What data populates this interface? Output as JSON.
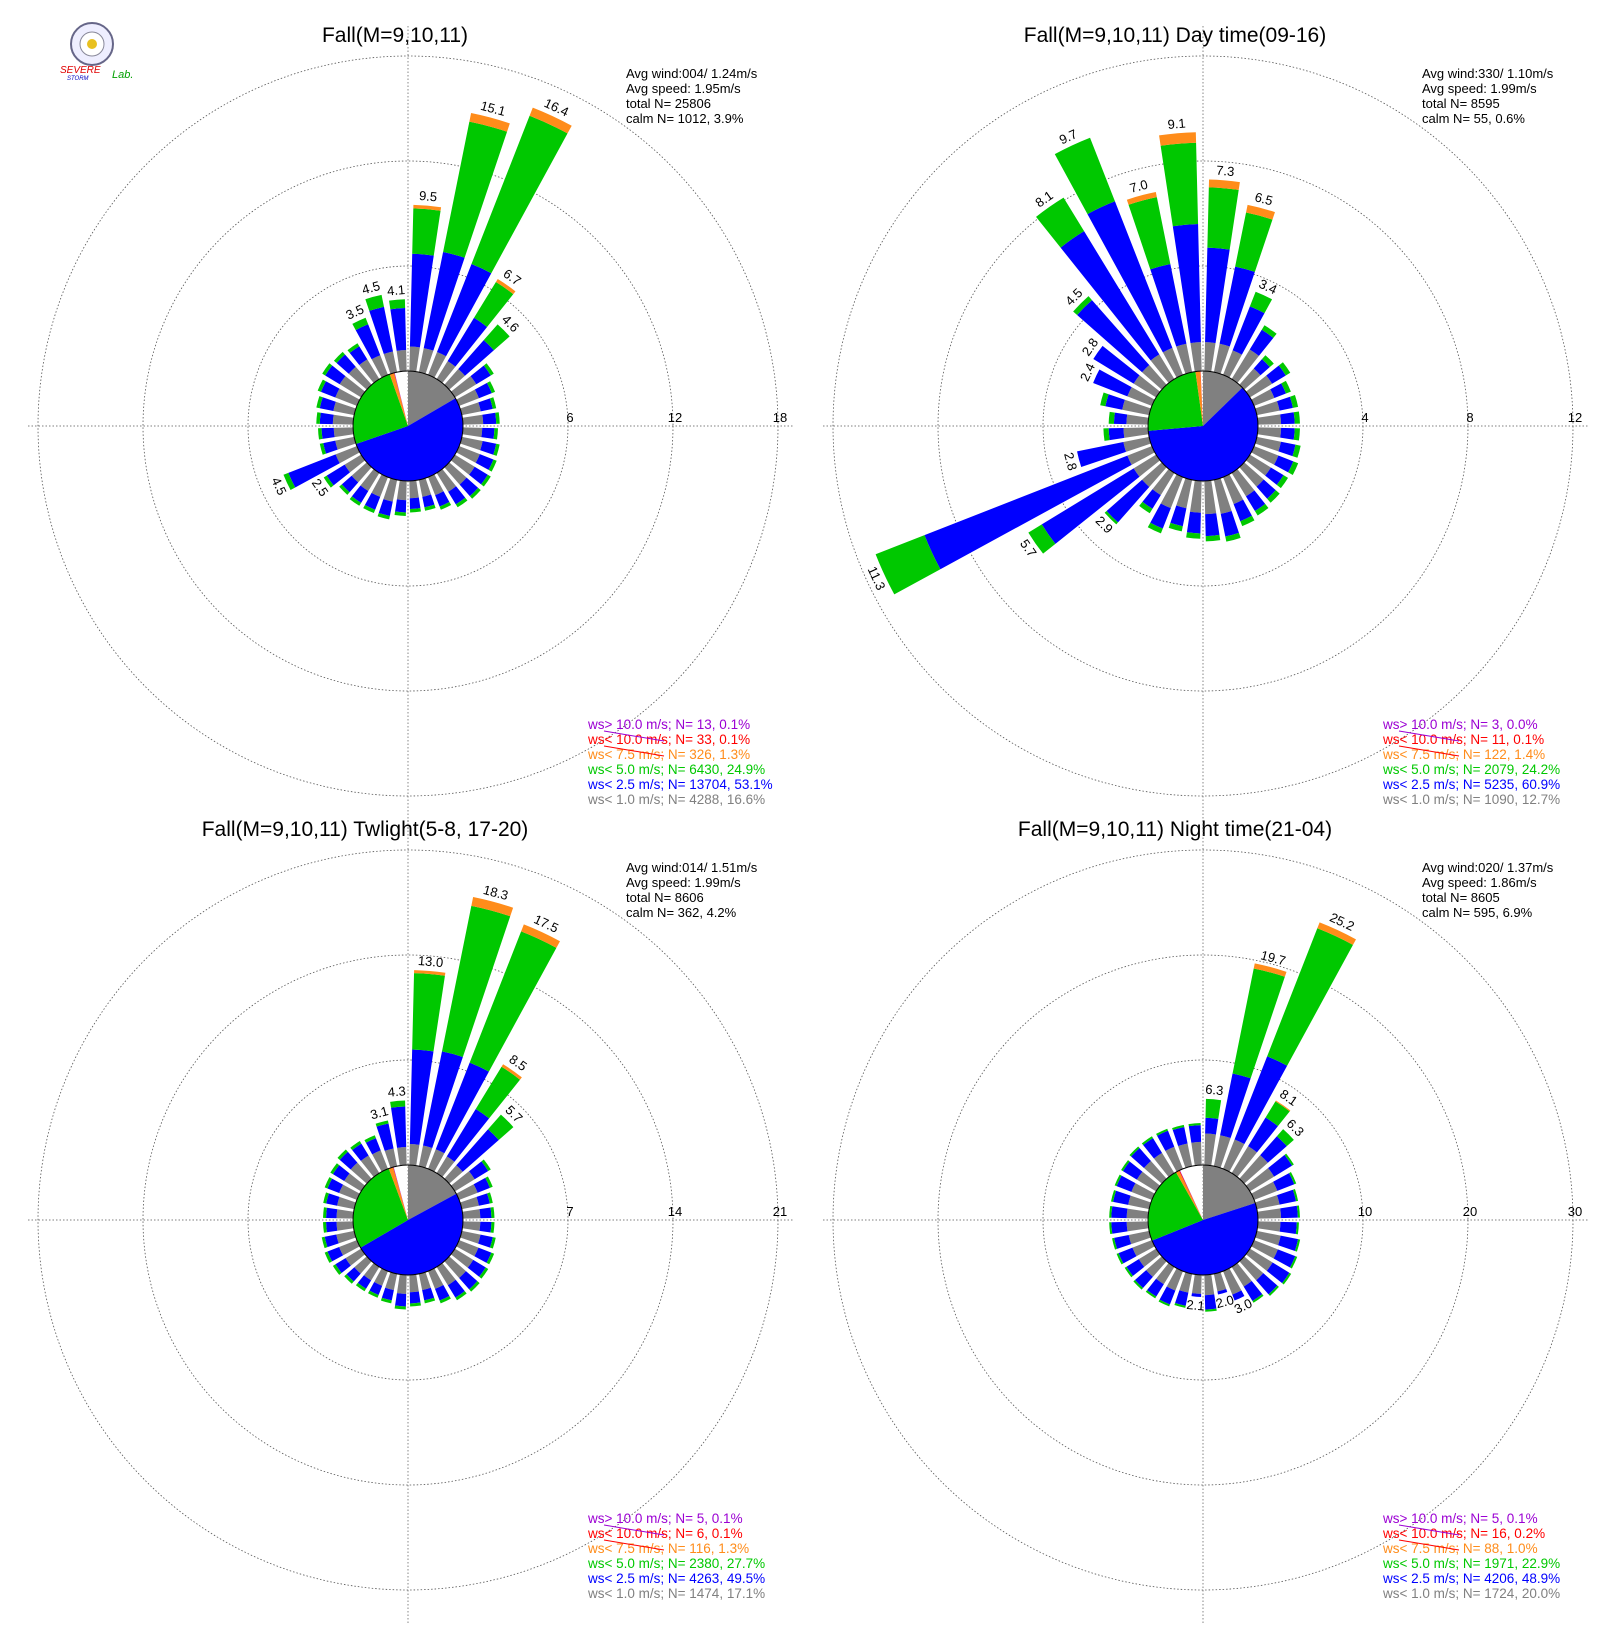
{
  "logo": {
    "lines": [
      "SEVERE",
      "STORM",
      "Lab."
    ]
  },
  "colors": {
    "gt10": "#9b00d3",
    "lt10": "#ff0000",
    "lt7_5": "#ff8c1a",
    "lt5": "#00c800",
    "lt2_5": "#0000ff",
    "lt1": "#808080"
  },
  "chart_data": [
    {
      "type": "polar-bar (wind rose)",
      "title": "Fall(M=9,10,11)",
      "ring_labels": [
        "6",
        "12",
        "18"
      ],
      "rmax": 18,
      "stats": [
        "Avg wind:004/ 1.24m/s",
        "Avg speed: 1.95m/s",
        "total N=       25806",
        "calm N=   1012,   3.9%"
      ],
      "legend": [
        "ws> 10.0 m/s; N=     13,  0.1%",
        "ws< 10.0 m/s; N=     33,  0.1%",
        "ws<  7.5 m/s; N=    326,  1.3%",
        "ws<  5.0 m/s; N=   6430, 24.9%",
        "ws<  2.5 m/s; N= 13704, 53.1%",
        "ws<  1.0 m/s; N=   4288, 16.6%"
      ],
      "labeled_bars": [
        {
          "dir": 5,
          "total": 9.5,
          "label": "9.5"
        },
        {
          "dir": 15,
          "total": 15.1,
          "label": "15.1"
        },
        {
          "dir": 25,
          "total": 16.4,
          "label": "16.4"
        },
        {
          "dir": 35,
          "total": 6.7,
          "label": "6.7"
        },
        {
          "dir": 45,
          "total": 4.6,
          "label": "4.6"
        },
        {
          "dir": 335,
          "total": 3.5,
          "label": "3.5"
        },
        {
          "dir": 345,
          "total": 4.5,
          "label": "4.5"
        },
        {
          "dir": 355,
          "total": 4.1,
          "label": "4.1"
        },
        {
          "dir": 245,
          "total": 4.5,
          "label": "4.5"
        },
        {
          "dir": 235,
          "total": 2.5,
          "label": "2.5"
        }
      ],
      "labeled_bar_segments": [
        [
          1.4,
          5.3,
          2.6,
          0.2,
          0
        ],
        [
          1.4,
          5.6,
          7.6,
          0.5,
          0
        ],
        [
          1.4,
          5.4,
          9.1,
          0.5,
          0
        ],
        [
          1.2,
          2.9,
          2.4,
          0.2,
          0
        ],
        [
          1.2,
          2.2,
          1.2,
          0,
          0
        ],
        [
          1.2,
          1.9,
          0.4,
          0,
          0
        ],
        [
          1.2,
          2.6,
          0.7,
          0,
          0
        ],
        [
          1.2,
          2.4,
          0.5,
          0,
          0
        ],
        [
          1.3,
          2.9,
          0.3,
          0,
          0
        ],
        [
          1.1,
          1.2,
          0.2,
          0,
          0
        ]
      ],
      "small_bars": [
        {
          "dir": 55,
          "total": 2.6
        },
        {
          "dir": 65,
          "total": 2.2
        },
        {
          "dir": 75,
          "total": 2.0
        },
        {
          "dir": 85,
          "total": 2.1
        },
        {
          "dir": 95,
          "total": 2.0
        },
        {
          "dir": 105,
          "total": 2.2
        },
        {
          "dir": 115,
          "total": 2.3
        },
        {
          "dir": 125,
          "total": 2.4
        },
        {
          "dir": 135,
          "total": 2.4
        },
        {
          "dir": 145,
          "total": 2.3
        },
        {
          "dir": 155,
          "total": 2.0
        },
        {
          "dir": 165,
          "total": 1.8
        },
        {
          "dir": 175,
          "total": 1.8
        },
        {
          "dir": 185,
          "total": 2.0
        },
        {
          "dir": 195,
          "total": 2.3
        },
        {
          "dir": 205,
          "total": 2.2
        },
        {
          "dir": 215,
          "total": 2.2
        },
        {
          "dir": 225,
          "total": 2.1
        },
        {
          "dir": 255,
          "total": 2.0
        },
        {
          "dir": 265,
          "total": 2.0
        },
        {
          "dir": 275,
          "total": 2.1
        },
        {
          "dir": 285,
          "total": 2.2
        },
        {
          "dir": 295,
          "total": 2.4
        },
        {
          "dir": 305,
          "total": 2.6
        },
        {
          "dir": 315,
          "total": 2.5
        },
        {
          "dir": 325,
          "total": 2.4
        }
      ],
      "pie_percent": [
        16.6,
        53.1,
        24.9,
        1.3,
        0.1,
        0.1
      ]
    },
    {
      "type": "polar-bar (wind rose)",
      "title": "Fall(M=9,10,11) Day time(09-16)",
      "ring_labels": [
        "4",
        "8",
        "12"
      ],
      "rmax": 12,
      "stats": [
        "Avg wind:330/ 1.10m/s",
        "Avg speed: 1.99m/s",
        "total N=         8595",
        "calm N=     55,   0.6%"
      ],
      "legend": [
        "ws> 10.0 m/s; N=       3,  0.0%",
        "ws< 10.0 m/s; N=     11,  0.1%",
        "ws<  7.5 m/s; N=    122,  1.4%",
        "ws<  5.0 m/s; N=   2079, 24.2%",
        "ws<  2.5 m/s; N=   5235, 60.9%",
        "ws<  1.0 m/s; N=   1090, 12.7%"
      ],
      "labeled_bars": [
        {
          "dir": 355,
          "total": 9.1,
          "label": "9.1"
        },
        {
          "dir": 345,
          "total": 7.0,
          "label": "7.0"
        },
        {
          "dir": 335,
          "total": 9.7,
          "label": "9.7"
        },
        {
          "dir": 325,
          "total": 8.1,
          "label": "8.1"
        },
        {
          "dir": 5,
          "total": 7.3,
          "label": "7.3"
        },
        {
          "dir": 15,
          "total": 6.5,
          "label": "6.5"
        },
        {
          "dir": 25,
          "total": 3.4,
          "label": "3.4"
        },
        {
          "dir": 315,
          "total": 4.5,
          "label": "4.5"
        },
        {
          "dir": 305,
          "total": 2.8,
          "label": "2.8"
        },
        {
          "dir": 295,
          "total": 2.4,
          "label": "2.4"
        },
        {
          "dir": 255,
          "total": 2.8,
          "label": "2.8"
        },
        {
          "dir": 245,
          "total": 11.3,
          "label": "11.3"
        },
        {
          "dir": 235,
          "total": 5.7,
          "label": "5.7"
        },
        {
          "dir": 225,
          "total": 2.9,
          "label": "2.9"
        }
      ],
      "labeled_bar_segments": [
        [
          1.1,
          4.5,
          3.1,
          0.4,
          0
        ],
        [
          1.1,
          3.1,
          2.6,
          0.2,
          0
        ],
        [
          1.1,
          6.0,
          2.6,
          0,
          0
        ],
        [
          1.1,
          5.5,
          1.5,
          0,
          0
        ],
        [
          1.1,
          3.6,
          2.3,
          0.3,
          0
        ],
        [
          1.1,
          3.0,
          2.1,
          0.3,
          0
        ],
        [
          1.0,
          1.8,
          0.6,
          0,
          0
        ],
        [
          1.0,
          3.3,
          0.2,
          0,
          0
        ],
        [
          1.0,
          1.8,
          0,
          0,
          0
        ],
        [
          1.0,
          1.4,
          0,
          0,
          0
        ],
        [
          1.0,
          1.8,
          0,
          0,
          0
        ],
        [
          1.0,
          8.3,
          2.0,
          0,
          0
        ],
        [
          1.0,
          4.1,
          0.6,
          0,
          0
        ],
        [
          1.0,
          1.8,
          0.1,
          0,
          0
        ]
      ],
      "small_bars": [
        {
          "dir": 35,
          "total": 2.4
        },
        {
          "dir": 45,
          "total": 1.5
        },
        {
          "dir": 55,
          "total": 1.8
        },
        {
          "dir": 65,
          "total": 1.5
        },
        {
          "dir": 75,
          "total": 1.6
        },
        {
          "dir": 85,
          "total": 1.6
        },
        {
          "dir": 95,
          "total": 1.6
        },
        {
          "dir": 105,
          "total": 1.7
        },
        {
          "dir": 115,
          "total": 1.8
        },
        {
          "dir": 125,
          "total": 1.7
        },
        {
          "dir": 135,
          "total": 1.8
        },
        {
          "dir": 145,
          "total": 1.9
        },
        {
          "dir": 155,
          "total": 2.0
        },
        {
          "dir": 165,
          "total": 2.4
        },
        {
          "dir": 175,
          "total": 2.3
        },
        {
          "dir": 185,
          "total": 2.2
        },
        {
          "dir": 195,
          "total": 2.0
        },
        {
          "dir": 205,
          "total": 2.3
        },
        {
          "dir": 215,
          "total": 1.8
        },
        {
          "dir": 265,
          "total": 1.7
        },
        {
          "dir": 275,
          "total": 1.5
        },
        {
          "dir": 285,
          "total": 1.9
        }
      ],
      "pie_percent": [
        12.7,
        60.9,
        24.2,
        1.4,
        0.1,
        0.0
      ]
    },
    {
      "type": "polar-bar (wind rose)",
      "title": "Fall(M=9,10,11) Twlight(5-8, 17-20)",
      "ring_labels": [
        "7",
        "14",
        "21"
      ],
      "rmax": 21,
      "stats": [
        "Avg wind:014/ 1.51m/s",
        "Avg speed: 1.99m/s",
        "total N=         8606",
        "calm N=    362,   4.2%"
      ],
      "legend": [
        "ws> 10.0 m/s; N=       5,  0.1%",
        "ws< 10.0 m/s; N=       6,  0.1%",
        "ws<  7.5 m/s; N=    116,  1.3%",
        "ws<  5.0 m/s; N=   2380, 27.7%",
        "ws<  2.5 m/s; N=   4263, 49.5%",
        "ws<  1.0 m/s; N=   1474, 17.1%"
      ],
      "labeled_bars": [
        {
          "dir": 5,
          "total": 13.0,
          "label": "13.0"
        },
        {
          "dir": 15,
          "total": 18.3,
          "label": "18.3"
        },
        {
          "dir": 25,
          "total": 17.5,
          "label": "17.5"
        },
        {
          "dir": 35,
          "total": 8.5,
          "label": "8.5"
        },
        {
          "dir": 45,
          "total": 5.7,
          "label": "5.7"
        },
        {
          "dir": 345,
          "total": 3.1,
          "label": "3.1"
        },
        {
          "dir": 355,
          "total": 4.3,
          "label": "4.3"
        }
      ],
      "labeled_bar_segments": [
        [
          1.4,
          6.3,
          5.1,
          0.2,
          0
        ],
        [
          1.4,
          6.4,
          9.9,
          0.6,
          0
        ],
        [
          1.4,
          6.2,
          9.4,
          0.5,
          0
        ],
        [
          1.3,
          3.7,
          3.3,
          0.2,
          0
        ],
        [
          1.2,
          3.2,
          1.3,
          0,
          0
        ],
        [
          1.2,
          1.7,
          0.2,
          0,
          0
        ],
        [
          1.2,
          2.7,
          0.4,
          0,
          0
        ]
      ],
      "small_bars": [
        {
          "dir": 55,
          "total": 2.8
        },
        {
          "dir": 65,
          "total": 2.4
        },
        {
          "dir": 75,
          "total": 2.1
        },
        {
          "dir": 85,
          "total": 2.1
        },
        {
          "dir": 95,
          "total": 2.1
        },
        {
          "dir": 105,
          "total": 2.3
        },
        {
          "dir": 115,
          "total": 2.5
        },
        {
          "dir": 125,
          "total": 2.6
        },
        {
          "dir": 135,
          "total": 2.7
        },
        {
          "dir": 145,
          "total": 2.6
        },
        {
          "dir": 155,
          "total": 2.3
        },
        {
          "dir": 165,
          "total": 2.0
        },
        {
          "dir": 175,
          "total": 2.1
        },
        {
          "dir": 185,
          "total": 2.3
        },
        {
          "dir": 195,
          "total": 2.0
        },
        {
          "dir": 205,
          "total": 1.9
        },
        {
          "dir": 215,
          "total": 1.9
        },
        {
          "dir": 225,
          "total": 2.0
        },
        {
          "dir": 235,
          "total": 2.2
        },
        {
          "dir": 245,
          "total": 2.3
        },
        {
          "dir": 255,
          "total": 2.2
        },
        {
          "dir": 265,
          "total": 2.0
        },
        {
          "dir": 275,
          "total": 2.0
        },
        {
          "dir": 285,
          "total": 2.1
        },
        {
          "dir": 295,
          "total": 2.3
        },
        {
          "dir": 305,
          "total": 2.4
        },
        {
          "dir": 315,
          "total": 2.6
        },
        {
          "dir": 325,
          "total": 2.5
        },
        {
          "dir": 335,
          "total": 2.4
        }
      ],
      "pie_percent": [
        17.1,
        49.5,
        27.7,
        1.3,
        0.1,
        0.1
      ]
    },
    {
      "type": "polar-bar (wind rose)",
      "title": "Fall(M=9,10,11) Night time(21-04)",
      "ring_labels": [
        "10",
        "20",
        "30"
      ],
      "rmax": 30,
      "stats": [
        "Avg wind:020/ 1.37m/s",
        "Avg speed: 1.86m/s",
        "total N=         8605",
        "calm N=    595,   6.9%"
      ],
      "legend": [
        "ws> 10.0 m/s; N=       5,  0.1%",
        "ws< 10.0 m/s; N=     16,  0.2%",
        "ws<  7.5 m/s; N=      88,  1.0%",
        "ws<  5.0 m/s; N=   1971, 22.9%",
        "ws<  2.5 m/s; N=   4206, 48.9%",
        "ws<  1.0 m/s; N=   1724, 20.0%"
      ],
      "labeled_bars": [
        {
          "dir": 15,
          "total": 19.7,
          "label": "19.7"
        },
        {
          "dir": 25,
          "total": 25.2,
          "label": "25.2"
        },
        {
          "dir": 35,
          "total": 8.1,
          "label": "8.1"
        },
        {
          "dir": 45,
          "total": 6.3,
          "label": "6.3"
        },
        {
          "dir": 5,
          "total": 6.3,
          "label": "6.3"
        },
        {
          "dir": 185,
          "total": 2.1,
          "label": "2.1"
        },
        {
          "dir": 165,
          "total": 2.0,
          "label": "2.0"
        },
        {
          "dir": 155,
          "total": 3.0,
          "label": "3.0"
        }
      ],
      "labeled_bar_segments": [
        [
          3.0,
          6.0,
          10.2,
          0.5,
          0
        ],
        [
          3.0,
          8.5,
          13.1,
          0.6,
          0
        ],
        [
          3.0,
          3.2,
          1.8,
          0.1,
          0
        ],
        [
          3.0,
          2.4,
          0.9,
          0,
          0
        ],
        [
          3.0,
          1.5,
          1.8,
          0,
          0
        ],
        [
          1.8,
          0.3,
          0,
          0,
          0
        ],
        [
          1.7,
          0.3,
          0,
          0,
          0
        ],
        [
          2.4,
          0.6,
          0,
          0,
          0
        ]
      ],
      "small_bars": [
        {
          "dir": 55,
          "total": 4.9
        },
        {
          "dir": 65,
          "total": 4.3
        },
        {
          "dir": 75,
          "total": 4.0
        },
        {
          "dir": 85,
          "total": 4.0
        },
        {
          "dir": 95,
          "total": 3.9
        },
        {
          "dir": 105,
          "total": 4.2
        },
        {
          "dir": 115,
          "total": 4.4
        },
        {
          "dir": 125,
          "total": 4.6
        },
        {
          "dir": 135,
          "total": 4.4
        },
        {
          "dir": 145,
          "total": 4.0
        },
        {
          "dir": 175,
          "total": 3.5
        },
        {
          "dir": 195,
          "total": 3.3
        },
        {
          "dir": 205,
          "total": 3.6
        },
        {
          "dir": 215,
          "total": 3.5
        },
        {
          "dir": 225,
          "total": 3.6
        },
        {
          "dir": 235,
          "total": 3.5
        },
        {
          "dir": 245,
          "total": 3.6
        },
        {
          "dir": 255,
          "total": 3.6
        },
        {
          "dir": 265,
          "total": 3.7
        },
        {
          "dir": 275,
          "total": 3.7
        },
        {
          "dir": 285,
          "total": 3.7
        },
        {
          "dir": 295,
          "total": 3.8
        },
        {
          "dir": 305,
          "total": 3.9
        },
        {
          "dir": 315,
          "total": 4.1
        },
        {
          "dir": 325,
          "total": 4.1
        },
        {
          "dir": 335,
          "total": 4.1
        },
        {
          "dir": 345,
          "total": 4.0
        },
        {
          "dir": 355,
          "total": 4.0
        }
      ],
      "pie_percent": [
        20.0,
        48.9,
        22.9,
        1.0,
        0.2,
        0.1
      ]
    }
  ]
}
